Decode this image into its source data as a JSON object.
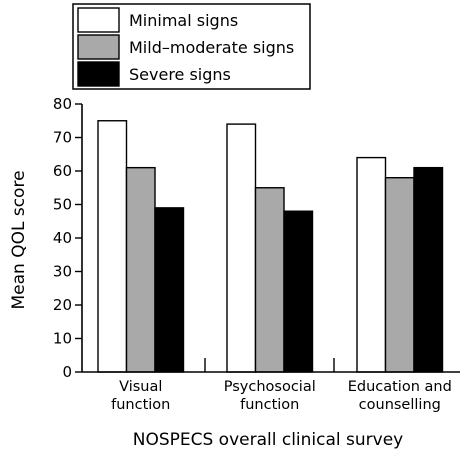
{
  "chart_data": {
    "type": "bar",
    "categories": [
      [
        "Visual",
        "function"
      ],
      [
        "Psychosocial",
        "function"
      ],
      [
        "Education and",
        "counselling"
      ]
    ],
    "series": [
      {
        "name": "Minimal signs",
        "values": [
          75,
          74,
          64
        ],
        "color": "#ffffff"
      },
      {
        "name": "Mild–moderate signs",
        "values": [
          61,
          55,
          58
        ],
        "color": "#a9a9a9"
      },
      {
        "name": "Severe signs",
        "values": [
          49,
          48,
          61
        ],
        "color": "#000000"
      }
    ],
    "xlabel": "NOSPECS overall clinical survey",
    "ylabel": "Mean QOL score",
    "ylim": [
      0,
      80
    ],
    "yticks": [
      0,
      10,
      20,
      30,
      40,
      50,
      60,
      70,
      80
    ],
    "grid": false,
    "legend": "top-left"
  }
}
